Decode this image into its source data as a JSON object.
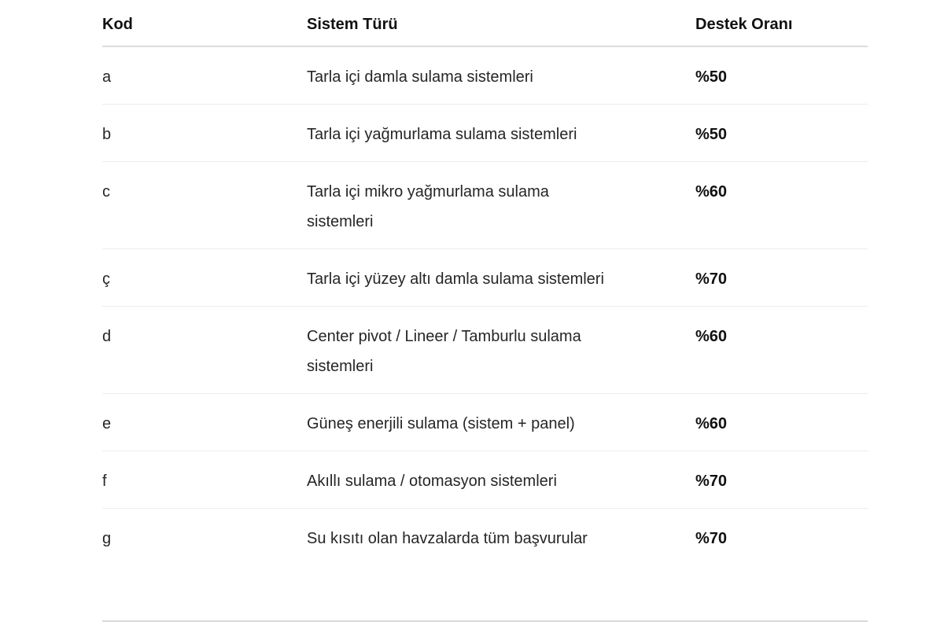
{
  "table": {
    "columns": [
      {
        "key": "code",
        "label": "Kod"
      },
      {
        "key": "system_type",
        "label": "Sistem Türü"
      },
      {
        "key": "support_rate",
        "label": "Destek Oranı"
      }
    ],
    "rows": [
      {
        "code": "a",
        "system_type": "Tarla içi damla sulama sistemleri",
        "support_rate": "%50"
      },
      {
        "code": "b",
        "system_type": "Tarla içi yağmurlama sulama sistemleri",
        "support_rate": "%50"
      },
      {
        "code": "c",
        "system_type": "Tarla içi mikro yağmurlama sulama sistemleri",
        "support_rate": "%60"
      },
      {
        "code": "ç",
        "system_type": "Tarla içi yüzey altı damla sulama sistemleri",
        "support_rate": "%70"
      },
      {
        "code": "d",
        "system_type": "Center pivot / Lineer / Tamburlu sulama sistemleri",
        "support_rate": "%60"
      },
      {
        "code": "e",
        "system_type": "Güneş enerjili sulama (sistem + panel)",
        "support_rate": "%60"
      },
      {
        "code": "f",
        "system_type": "Akıllı sulama / otomasyon sistemleri",
        "support_rate": "%70"
      },
      {
        "code": "g",
        "system_type": "Su kısıtı olan havzalarda tüm başvurular",
        "support_rate": "%70"
      }
    ]
  },
  "colors": {
    "background": "#ffffff",
    "text_primary": "#111111",
    "text_body": "#262626",
    "header_border": "#dcdcdc",
    "row_border": "#ececec",
    "bottom_rule": "#d9d9d9"
  }
}
